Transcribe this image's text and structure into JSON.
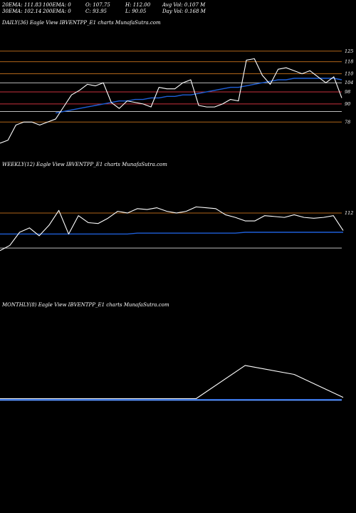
{
  "header": {
    "row1": [
      "20EMA: 111.83",
      "100EMA: 0",
      "O: 107.75",
      "H: 112.00",
      "Avg Vol: 0.107 M"
    ],
    "row2": [
      "30EMA: 102.14",
      "200EMA: 0",
      "C: 93.95",
      "L: 90.05",
      "Day Vol: 0.168  M"
    ]
  },
  "colors": {
    "background": "#000000",
    "price_line": "#ffffff",
    "ema_line": "#1e5fd8",
    "level_orange": "#b0651a",
    "level_red": "#c8323c",
    "level_grey": "#bcbcbc"
  },
  "chart_data": [
    {
      "type": "line",
      "panel": "daily",
      "title": "DAILY(36) Eagle   View  IBVENTPP_E1 charts MunafaSutra.com",
      "price_series": [
        64,
        66,
        76,
        78,
        78,
        76,
        78,
        80,
        88,
        96,
        99,
        103,
        102,
        104,
        91,
        87,
        92,
        91,
        90,
        88,
        101,
        100,
        100,
        104,
        106,
        89,
        88,
        88,
        90,
        93,
        92,
        119,
        120,
        109,
        103,
        113,
        114,
        112,
        110,
        112,
        108,
        104,
        108,
        94
      ],
      "ema_series": [
        null,
        null,
        null,
        null,
        null,
        null,
        null,
        84,
        85,
        86,
        87,
        88,
        89,
        90,
        91,
        92,
        92,
        93,
        93,
        94,
        94,
        95,
        95,
        96,
        96,
        97,
        98,
        99,
        100,
        101,
        101,
        102,
        103,
        104,
        105,
        106,
        106,
        107,
        107,
        107,
        107,
        107,
        107,
        106
      ],
      "levels": [
        {
          "value": 125,
          "label": "125",
          "color": "#b0651a"
        },
        {
          "value": 118,
          "label": "118",
          "color": "#b0651a"
        },
        {
          "value": 110,
          "label": "110",
          "color": "#b0651a"
        },
        {
          "value": 104,
          "label": "104",
          "color": "#bcbcbc"
        },
        {
          "value": 98,
          "label": "98",
          "color": "#c8323c"
        },
        {
          "value": 90,
          "label": "90",
          "color": "#c8323c"
        },
        {
          "value": 85,
          "label": "",
          "color": "#bcbcbc"
        },
        {
          "value": 78,
          "label": "78",
          "color": "#b0651a"
        }
      ],
      "ylim": [
        55,
        140
      ]
    },
    {
      "type": "line",
      "panel": "weekly",
      "title": "WEEKLY(12) Eagle   View  IBVENTPP_E1 charts MunafaSutra.com",
      "price_series": [
        69,
        75,
        90,
        95,
        86,
        98,
        115,
        88,
        109,
        101,
        100,
        106,
        114,
        112,
        117,
        116,
        118,
        114,
        112,
        114,
        119,
        118,
        117,
        110,
        107,
        103,
        103,
        109,
        108,
        107,
        110,
        107,
        106,
        107,
        109,
        92
      ],
      "ema_series": [
        88,
        88,
        88,
        88,
        88,
        88,
        88,
        88,
        88,
        88,
        88,
        88,
        88,
        88,
        89,
        89,
        89,
        89,
        89,
        89,
        89,
        89,
        89,
        89,
        89,
        90,
        90,
        90,
        90,
        90,
        90,
        90,
        90,
        90,
        90,
        90
      ],
      "levels": [
        {
          "value": 112,
          "label": "112",
          "color": "#b0651a"
        },
        {
          "value": 72,
          "label": "",
          "color": "#bcbcbc"
        }
      ],
      "ylim": [
        20,
        160
      ]
    },
    {
      "type": "line",
      "panel": "monthly",
      "title": "MONTHLY(8) Eagle   View  IBVENTPP_E1 charts MunafaSutra.com",
      "price_series": [
        91,
        91,
        91,
        91,
        91,
        117,
        110,
        92
      ],
      "ema_series": [
        null,
        null,
        null,
        null,
        null,
        null,
        null,
        90
      ],
      "levels": [],
      "ylim": [
        60,
        160
      ]
    }
  ]
}
